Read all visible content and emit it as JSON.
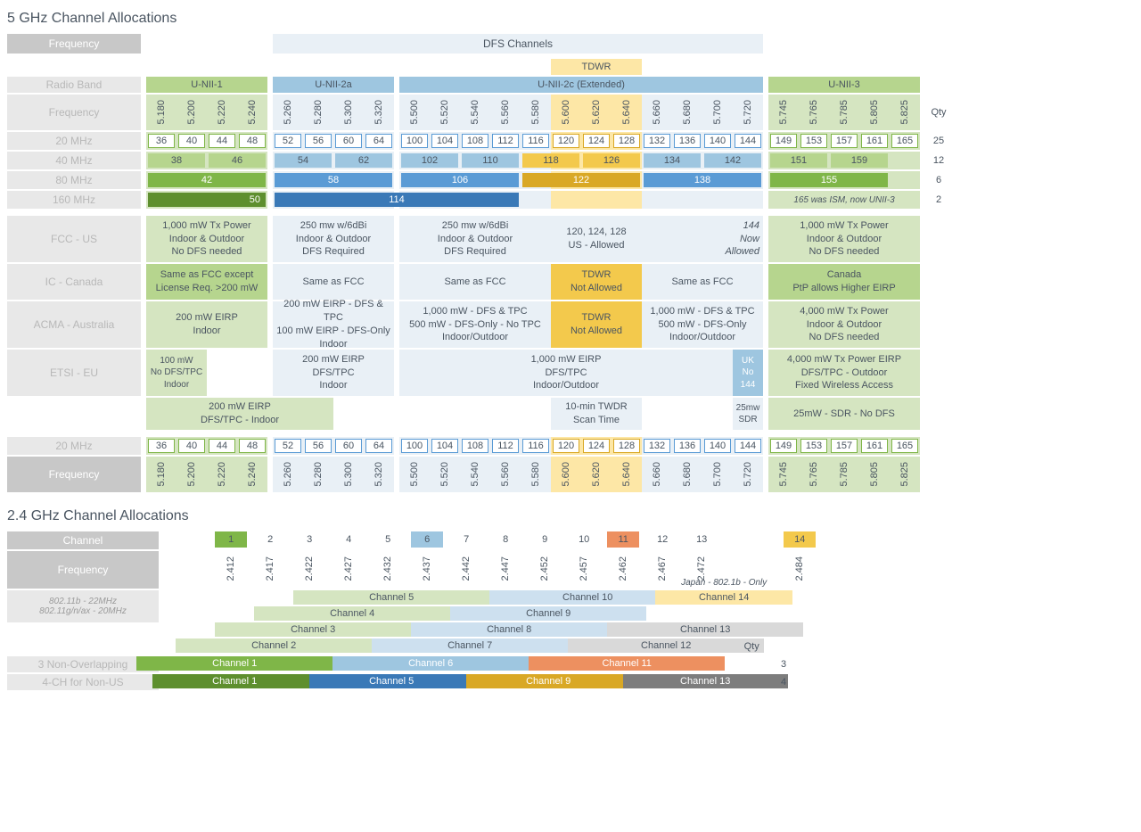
{
  "colors": {
    "label_bg": "#e8e8e8",
    "label_text": "#b8b8b8",
    "band_green_light": "#d5e5c1",
    "band_green_mid": "#b6d58e",
    "band_green_dark": "#7fb648",
    "band_green_darker": "#5e8f2e",
    "band_blue_lightest": "#e9f0f6",
    "band_blue_light": "#cde0ef",
    "band_blue_mid": "#9ec6e0",
    "band_blue_dark": "#5a9bd5",
    "band_blue_darker": "#3a79b7",
    "tdwr_bg": "#fde7a6",
    "tdwr_mid": "#f3c94c",
    "tdwr_dark": "#d9a825",
    "orange": "#ed9060",
    "orange_dark": "#d07236",
    "gray_bar": "#9aa0a6",
    "text": "#4a5561"
  },
  "titles": {
    "title5": "5 GHz Channel Allocations",
    "title24": "2.4 GHz Channel Allocations"
  },
  "labels": {
    "frequency": "Frequency",
    "dfs": "DFS Channels",
    "tdwr": "TDWR",
    "radio_band": "Radio Band",
    "mhz20": "20 MHz",
    "mhz40": "40 MHz",
    "mhz80": "80 MHz",
    "mhz160": "160 MHz",
    "qty": "Qty",
    "fcc": "FCC - US",
    "ic": "IC - Canada",
    "acma": "ACMA - Australia",
    "etsi": "ETSI - EU",
    "channel": "Channel",
    "b22": "802.11b - 22MHz",
    "gnax20": "802.11g/n/ax - 20MHz",
    "non3": "3 Non-Overlapping",
    "ch4": "4-CH for Non-US",
    "note165": "165 was ISM, now UNII-3"
  },
  "bands": [
    {
      "name": "U-NII-1",
      "color": "#b6d58e",
      "span_bg": "#d5e5c1"
    },
    {
      "name": "U-NII-2a",
      "color": "#9ec6e0",
      "span_bg": "#cde0ef"
    },
    {
      "name": "U-NII-2c (Extended)",
      "color": "#9ec6e0",
      "span_bg": "#cde0ef"
    },
    {
      "name": "U-NII-3",
      "color": "#b6d58e",
      "span_bg": "#d5e5c1"
    }
  ],
  "freqs5": [
    "5.180",
    "5.200",
    "5.220",
    "5.240",
    "5.260",
    "5.280",
    "5.300",
    "5.320",
    "5.500",
    "5.520",
    "5.540",
    "5.560",
    "5.580",
    "5.600",
    "5.620",
    "5.640",
    "5.660",
    "5.680",
    "5.700",
    "5.720",
    "5.745",
    "5.765",
    "5.785",
    "5.805",
    "5.825"
  ],
  "ch20": [
    "36",
    "40",
    "44",
    "48",
    "52",
    "56",
    "60",
    "64",
    "100",
    "104",
    "108",
    "112",
    "116",
    "120",
    "124",
    "128",
    "132",
    "136",
    "140",
    "144",
    "149",
    "153",
    "157",
    "161",
    "165"
  ],
  "ch40": [
    {
      "n": "38",
      "span": 2,
      "c": "#b6d58e"
    },
    {
      "n": "46",
      "span": 2,
      "c": "#b6d58e"
    },
    {
      "n": "54",
      "span": 2,
      "c": "#9ec6e0"
    },
    {
      "n": "62",
      "span": 2,
      "c": "#9ec6e0"
    },
    {
      "n": "102",
      "span": 2,
      "c": "#9ec6e0"
    },
    {
      "n": "110",
      "span": 2,
      "c": "#9ec6e0"
    },
    {
      "n": "118",
      "span": 2,
      "c": "#f3c94c"
    },
    {
      "n": "126",
      "span": 2,
      "c": "#f3c94c"
    },
    {
      "n": "134",
      "span": 2,
      "c": "#9ec6e0"
    },
    {
      "n": "142",
      "span": 2,
      "c": "#9ec6e0"
    },
    {
      "n": "151",
      "span": 2,
      "c": "#b6d58e"
    },
    {
      "n": "159",
      "span": 2,
      "c": "#b6d58e"
    }
  ],
  "ch80": [
    {
      "n": "42",
      "span": 4,
      "c": "#7fb648"
    },
    {
      "n": "58",
      "span": 4,
      "c": "#5a9bd5"
    },
    {
      "n": "106",
      "span": 4,
      "c": "#5a9bd5"
    },
    {
      "n": "122",
      "span": 4,
      "c": "#d9a825"
    },
    {
      "n": "138",
      "span": 4,
      "c": "#5a9bd5"
    },
    {
      "n": "155",
      "span": 4,
      "c": "#7fb648"
    }
  ],
  "ch160": [
    {
      "n": "50",
      "span": 4,
      "align": "right",
      "c": "#5e8f2e",
      "tc": "#fff"
    },
    {
      "n": "114",
      "span": 8,
      "align": "center",
      "c": "#3a79b7",
      "tc": "#fff"
    }
  ],
  "qty": {
    "q20": "25",
    "q40": "12",
    "q80": "6",
    "q160": "2"
  },
  "reg_fcc": [
    {
      "lines": [
        "1,000 mW Tx Power",
        "Indoor & Outdoor",
        "No DFS needed"
      ],
      "bg": "#d5e5c1"
    },
    {
      "lines": [
        "250 mw w/6dBi",
        "Indoor & Outdoor",
        "DFS Required"
      ],
      "bg": "#e9f0f6"
    },
    {
      "lines": [
        "250 mw w/6dBi",
        "Indoor & Outdoor",
        "DFS Required"
      ],
      "bg": "#e9f0f6"
    },
    {
      "lines": [
        "120, 124, 128",
        "US - Allowed"
      ],
      "bg": "#e9f0f6"
    },
    {
      "lines": [
        "144",
        "Now",
        "Allowed"
      ],
      "bg": "#e9f0f6",
      "align": "right",
      "note": true
    },
    {
      "lines": [
        "1,000 mW Tx Power",
        "Indoor & Outdoor",
        "No DFS needed"
      ],
      "bg": "#d5e5c1"
    }
  ],
  "reg_ic": [
    {
      "lines": [
        "Same as FCC except",
        "License Req. >200 mW"
      ],
      "bg": "#b6d58e"
    },
    {
      "lines": [
        "Same as FCC"
      ],
      "bg": "#e9f0f6"
    },
    {
      "lines": [
        "Same as FCC"
      ],
      "bg": "#e9f0f6"
    },
    {
      "lines": [
        "TDWR",
        "Not Allowed"
      ],
      "bg": "#f3c94c"
    },
    {
      "lines": [
        "Same as FCC"
      ],
      "bg": "#e9f0f6"
    },
    {
      "lines": [
        "Canada",
        "PtP allows Higher EIRP"
      ],
      "bg": "#b6d58e"
    }
  ],
  "reg_acma": [
    {
      "lines": [
        "200 mW EIRP",
        "Indoor"
      ],
      "bg": "#d5e5c1"
    },
    {
      "lines": [
        "200 mW EIRP - DFS & TPC",
        "100 mW EIRP - DFS-Only",
        "Indoor"
      ],
      "bg": "#e9f0f6"
    },
    {
      "lines": [
        "1,000 mW - DFS & TPC",
        "500 mW - DFS-Only - No TPC",
        "Indoor/Outdoor"
      ],
      "bg": "#e9f0f6"
    },
    {
      "lines": [
        "TDWR",
        "Not Allowed"
      ],
      "bg": "#f3c94c"
    },
    {
      "lines": [
        "1,000 mW - DFS & TPC",
        "500 mW - DFS-Only",
        "Indoor/Outdoor"
      ],
      "bg": "#e9f0f6"
    },
    {
      "lines": [
        "4,000 mW Tx Power",
        "Indoor & Outdoor",
        "No DFS needed"
      ],
      "bg": "#d5e5c1"
    }
  ],
  "reg_etsi_a": [
    {
      "lines": [
        "100 mW",
        "No DFS/TPC",
        "Indoor"
      ],
      "bg": "#d5e5c1",
      "small": true
    },
    {
      "lines": [
        "200 mW EIRP",
        "DFS/TPC",
        "Indoor"
      ],
      "bg": "#e9f0f6"
    },
    {
      "lines": [
        "1,000 mW EIRP",
        "DFS/TPC",
        "Indoor/Outdoor"
      ],
      "bg": "#e9f0f6"
    },
    {
      "lines": [
        "UK",
        "No",
        "144"
      ],
      "bg": "#9ec6e0",
      "tc": "#fff",
      "narrow": true
    },
    {
      "lines": [
        "4,000 mW Tx Power EIRP",
        "DFS/TPC  -   Outdoor",
        "Fixed Wireless Access"
      ],
      "bg": "#d5e5c1"
    }
  ],
  "reg_etsi_b": [
    {
      "lines": [
        "200 mW EIRP",
        "DFS/TPC - Indoor"
      ],
      "bg": "#d5e5c1",
      "wide": 2
    },
    {
      "lines": [
        "10-min TWDR",
        "Scan Time"
      ],
      "bg": "#e9f0f6"
    },
    {
      "lines": [
        "25mw",
        "SDR"
      ],
      "bg": "#e9f0f6",
      "narrow": true,
      "small": true
    },
    {
      "lines": [
        "25mW - SDR - No DFS"
      ],
      "bg": "#d5e5c1"
    }
  ],
  "ch24": [
    "1",
    "2",
    "3",
    "4",
    "5",
    "6",
    "7",
    "8",
    "9",
    "10",
    "11",
    "12",
    "13",
    "14"
  ],
  "ch24_hl": {
    "1": "#7fb648",
    "6": "#9ec6e0",
    "11": "#ed9060",
    "14": "#f3c94c"
  },
  "freqs24": [
    "2.412",
    "2.417",
    "2.422",
    "2.427",
    "2.432",
    "2.437",
    "2.442",
    "2.447",
    "2.452",
    "2.457",
    "2.462",
    "2.467",
    "2.472",
    "2.484"
  ],
  "stagger": {
    "japan": "Japan - 802.1b - Only",
    "rows": [
      [
        {
          "n": "Channel 5",
          "c": "#d5e5c1"
        },
        {
          "n": "Channel 10",
          "c": "#cde0ef"
        },
        {
          "n": "Channel 14",
          "c": "#fde7a6",
          "japan": true
        }
      ],
      [
        {
          "n": "Channel 4",
          "c": "#d5e5c1"
        },
        {
          "n": "Channel 9",
          "c": "#cde0ef"
        }
      ],
      [
        {
          "n": "Channel 3",
          "c": "#d5e5c1"
        },
        {
          "n": "Channel 8",
          "c": "#cde0ef"
        },
        {
          "n": "Channel 13",
          "c": "#d9d9d9"
        }
      ],
      [
        {
          "n": "Channel 2",
          "c": "#d5e5c1"
        },
        {
          "n": "Channel 7",
          "c": "#cde0ef"
        },
        {
          "n": "Channel 12",
          "c": "#d9d9d9"
        }
      ]
    ]
  },
  "non3": [
    {
      "n": "Channel 1",
      "c": "#7fb648"
    },
    {
      "n": "Channel 6",
      "c": "#9ec6e0"
    },
    {
      "n": "Channel 11",
      "c": "#ed9060"
    }
  ],
  "ch4bar": [
    {
      "n": "Channel 1",
      "c": "#5e8f2e"
    },
    {
      "n": "Channel 5",
      "c": "#3a79b7"
    },
    {
      "n": "Channel 9",
      "c": "#d9a825"
    },
    {
      "n": "Channel 13",
      "c": "#7d7d7d"
    }
  ],
  "qty24": {
    "non3": "3",
    "ch4": "4"
  }
}
